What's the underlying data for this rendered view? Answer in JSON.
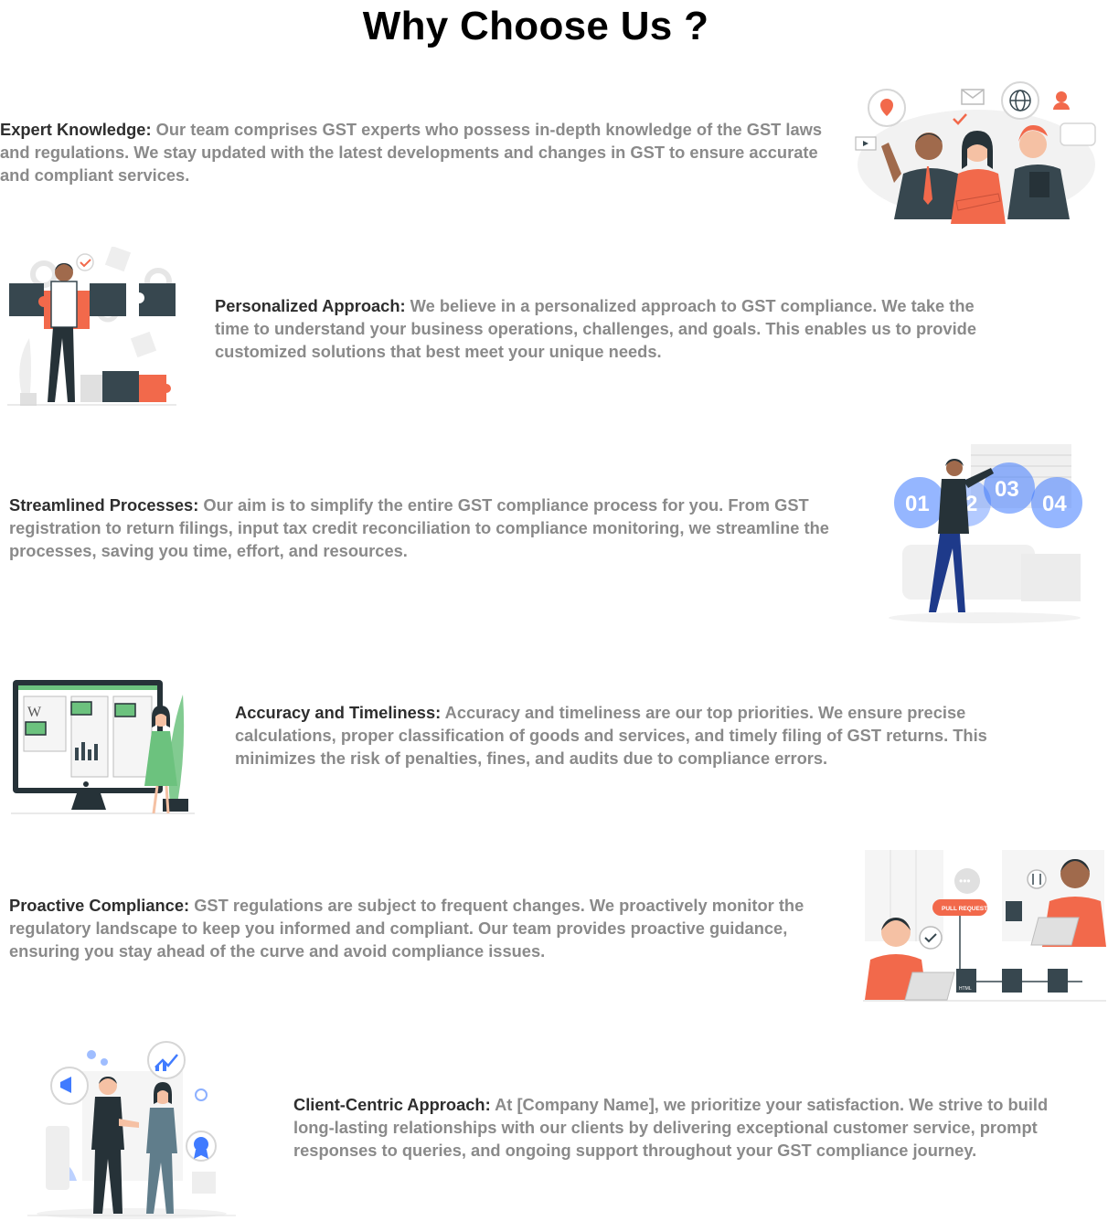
{
  "page": {
    "title": "Why Choose Us ?"
  },
  "colors": {
    "heading": "#000000",
    "lead": "#2e2e2e",
    "body": "#8a8a8a",
    "accent_orange": "#f2694b",
    "accent_blue": "#407bff",
    "accent_green": "#6cc27e",
    "dark_slate": "#37474f"
  },
  "features": [
    {
      "lead": "Expert Knowledge:",
      "body": " Our team comprises GST experts who possess in-depth knowledge of the GST laws and regulations. We stay updated with the latest developments and changes in GST to ensure accurate and compliant services.",
      "icon": "team-experts-illustration"
    },
    {
      "lead": "Personalized Approach:",
      "body": " We believe in a personalized approach to GST compliance. We take the time to understand your business operations, challenges, and goals. This enables us to provide customized solutions that best meet your unique needs.",
      "icon": "puzzle-illustration"
    },
    {
      "lead": "Streamlined Processes:",
      "body": " Our aim is to simplify the entire GST compliance process for you. From GST registration to return filings, input tax credit reconciliation to compliance monitoring, we streamline the processes, saving you time, effort, and resources.",
      "icon": "process-steps-illustration",
      "steps": [
        "01",
        "2",
        "03",
        "04"
      ]
    },
    {
      "lead": "Accuracy and Timeliness:",
      "body": " Accuracy and timeliness are our top priorities. We ensure precise calculations, proper classification of goods and services, and timely filing of GST returns. This minimizes the risk of penalties, fines, and audits due to compliance errors.",
      "icon": "monitor-dashboard-illustration"
    },
    {
      "lead": "Proactive Compliance:",
      "body": " GST regulations are subject to frequent changes. We proactively monitor the regulatory landscape to keep you informed and compliant. Our team provides proactive guidance, ensuring you stay ahead of the curve and avoid compliance issues.",
      "icon": "pull-request-illustration",
      "tag": "PULL REQUEST",
      "file_label": "HTML"
    },
    {
      "lead": "Client-Centric Approach:",
      "body": " At [Company Name], we prioritize your satisfaction. We strive to build long-lasting relationships with our clients by delivering exceptional customer service, prompt responses to queries, and ongoing support throughout your GST compliance journey.",
      "icon": "handshake-illustration"
    }
  ]
}
